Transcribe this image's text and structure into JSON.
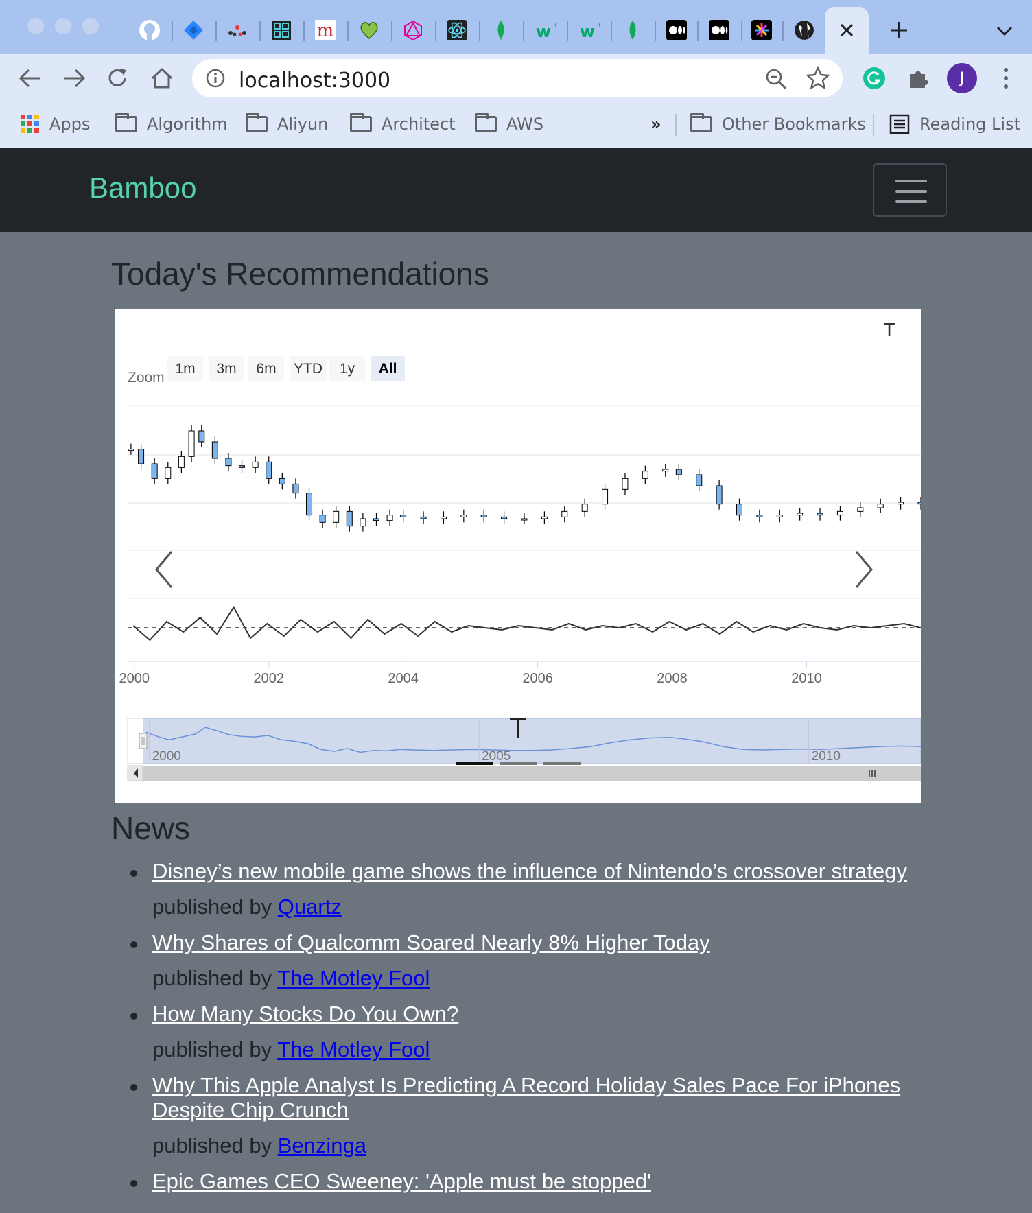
{
  "browser": {
    "url": "localhost:3000",
    "profile_initial": "J",
    "bookmarks": [
      "Apps",
      "Algorithm",
      "Aliyun",
      "Architect",
      "AWS"
    ],
    "bookmarks_overflow": "»",
    "other_bookmarks": "Other Bookmarks",
    "reading_list": "Reading List",
    "tab_icons": [
      "github-icon",
      "jira-icon",
      "graph-icon",
      "grid-icon",
      "m-icon",
      "heart-icon",
      "graphql-icon",
      "react-icon",
      "mongodb-icon",
      "w3-icon",
      "w3-icon",
      "mongodb-icon",
      "medium-icon",
      "medium-icon",
      "sparkle-icon",
      "globe-icon"
    ],
    "colors": {
      "tabbar": "#a8c3ef",
      "toolbar": "#dfe8f8",
      "avatar": "#5a2ea6"
    }
  },
  "navbar": {
    "brand": "Bamboo",
    "brand_color": "#56d3a8"
  },
  "recommendations": {
    "title": "Today's Recommendations",
    "chart_label": "T",
    "zoom_label": "Zoom",
    "zoom_buttons": [
      "1m",
      "3m",
      "6m",
      "YTD",
      "1y",
      "All"
    ],
    "active_zoom": "All"
  },
  "chart_data": {
    "type": "candlestick",
    "title": "T",
    "x_axis": {
      "ticks": [
        "2000",
        "2002",
        "2004",
        "2006",
        "2008",
        "2010"
      ],
      "range": [
        1999.9,
        2011.7
      ]
    },
    "price_series": {
      "name": "",
      "points": [
        [
          1999.95,
          0.82
        ],
        [
          2000.1,
          0.74
        ],
        [
          2000.3,
          0.66
        ],
        [
          2000.5,
          0.72
        ],
        [
          2000.7,
          0.78
        ],
        [
          2000.85,
          0.92
        ],
        [
          2001.0,
          0.86
        ],
        [
          2001.2,
          0.77
        ],
        [
          2001.4,
          0.73
        ],
        [
          2001.6,
          0.72
        ],
        [
          2001.8,
          0.75
        ],
        [
          2002.0,
          0.66
        ],
        [
          2002.2,
          0.63
        ],
        [
          2002.4,
          0.58
        ],
        [
          2002.6,
          0.46
        ],
        [
          2002.8,
          0.42
        ],
        [
          2003.0,
          0.48
        ],
        [
          2003.2,
          0.4
        ],
        [
          2003.4,
          0.44
        ],
        [
          2003.6,
          0.43
        ],
        [
          2003.8,
          0.46
        ],
        [
          2004.0,
          0.45
        ],
        [
          2004.3,
          0.44
        ],
        [
          2004.6,
          0.45
        ],
        [
          2004.9,
          0.46
        ],
        [
          2005.2,
          0.45
        ],
        [
          2005.5,
          0.44
        ],
        [
          2005.8,
          0.44
        ],
        [
          2006.1,
          0.45
        ],
        [
          2006.4,
          0.48
        ],
        [
          2006.7,
          0.52
        ],
        [
          2007.0,
          0.6
        ],
        [
          2007.3,
          0.66
        ],
        [
          2007.6,
          0.7
        ],
        [
          2007.9,
          0.71
        ],
        [
          2008.1,
          0.68
        ],
        [
          2008.4,
          0.62
        ],
        [
          2008.7,
          0.52
        ],
        [
          2009.0,
          0.46
        ],
        [
          2009.3,
          0.45
        ],
        [
          2009.6,
          0.46
        ],
        [
          2009.9,
          0.47
        ],
        [
          2010.2,
          0.46
        ],
        [
          2010.5,
          0.48
        ],
        [
          2010.8,
          0.5
        ],
        [
          2011.1,
          0.52
        ],
        [
          2011.4,
          0.53
        ],
        [
          2011.7,
          0.52
        ]
      ]
    },
    "indicator_series": {
      "name": "",
      "values": [
        0.1,
        -0.6,
        0.3,
        -0.2,
        0.5,
        -0.3,
        1.0,
        -0.5,
        0.2,
        -0.4,
        0.4,
        -0.2,
        0.3,
        -0.5,
        0.4,
        -0.3,
        0.2,
        -0.4,
        0.3,
        -0.2,
        0.1,
        0.0,
        -0.1,
        0.1,
        0.0,
        -0.1,
        0.2,
        -0.1,
        0.1,
        0.0,
        0.2,
        -0.2,
        0.3,
        -0.1,
        0.2,
        -0.3,
        0.3,
        -0.2,
        0.1,
        -0.1,
        0.2,
        0.0,
        -0.1,
        0.1,
        0.0,
        0.1,
        0.2,
        0.0
      ],
      "baseline": 0
    },
    "navigator": {
      "ticks": [
        "2000",
        "2005",
        "2010"
      ]
    }
  },
  "news": {
    "title": "News",
    "published_by": "published by",
    "items": [
      {
        "headline": "Disney’s new mobile game shows the influence of Nintendo’s crossover strategy",
        "source": "Quartz"
      },
      {
        "headline": "Why Shares of Qualcomm Soared Nearly 8% Higher Today",
        "source": "The Motley Fool"
      },
      {
        "headline": "How Many Stocks Do You Own?",
        "source": "The Motley Fool"
      },
      {
        "headline": "Why This Apple Analyst Is Predicting A Record Holiday Sales Pace For iPhones Despite Chip Crunch",
        "source": "Benzinga"
      },
      {
        "headline": "Epic Games CEO Sweeney: 'Apple must be stopped'",
        "source": ""
      }
    ]
  }
}
